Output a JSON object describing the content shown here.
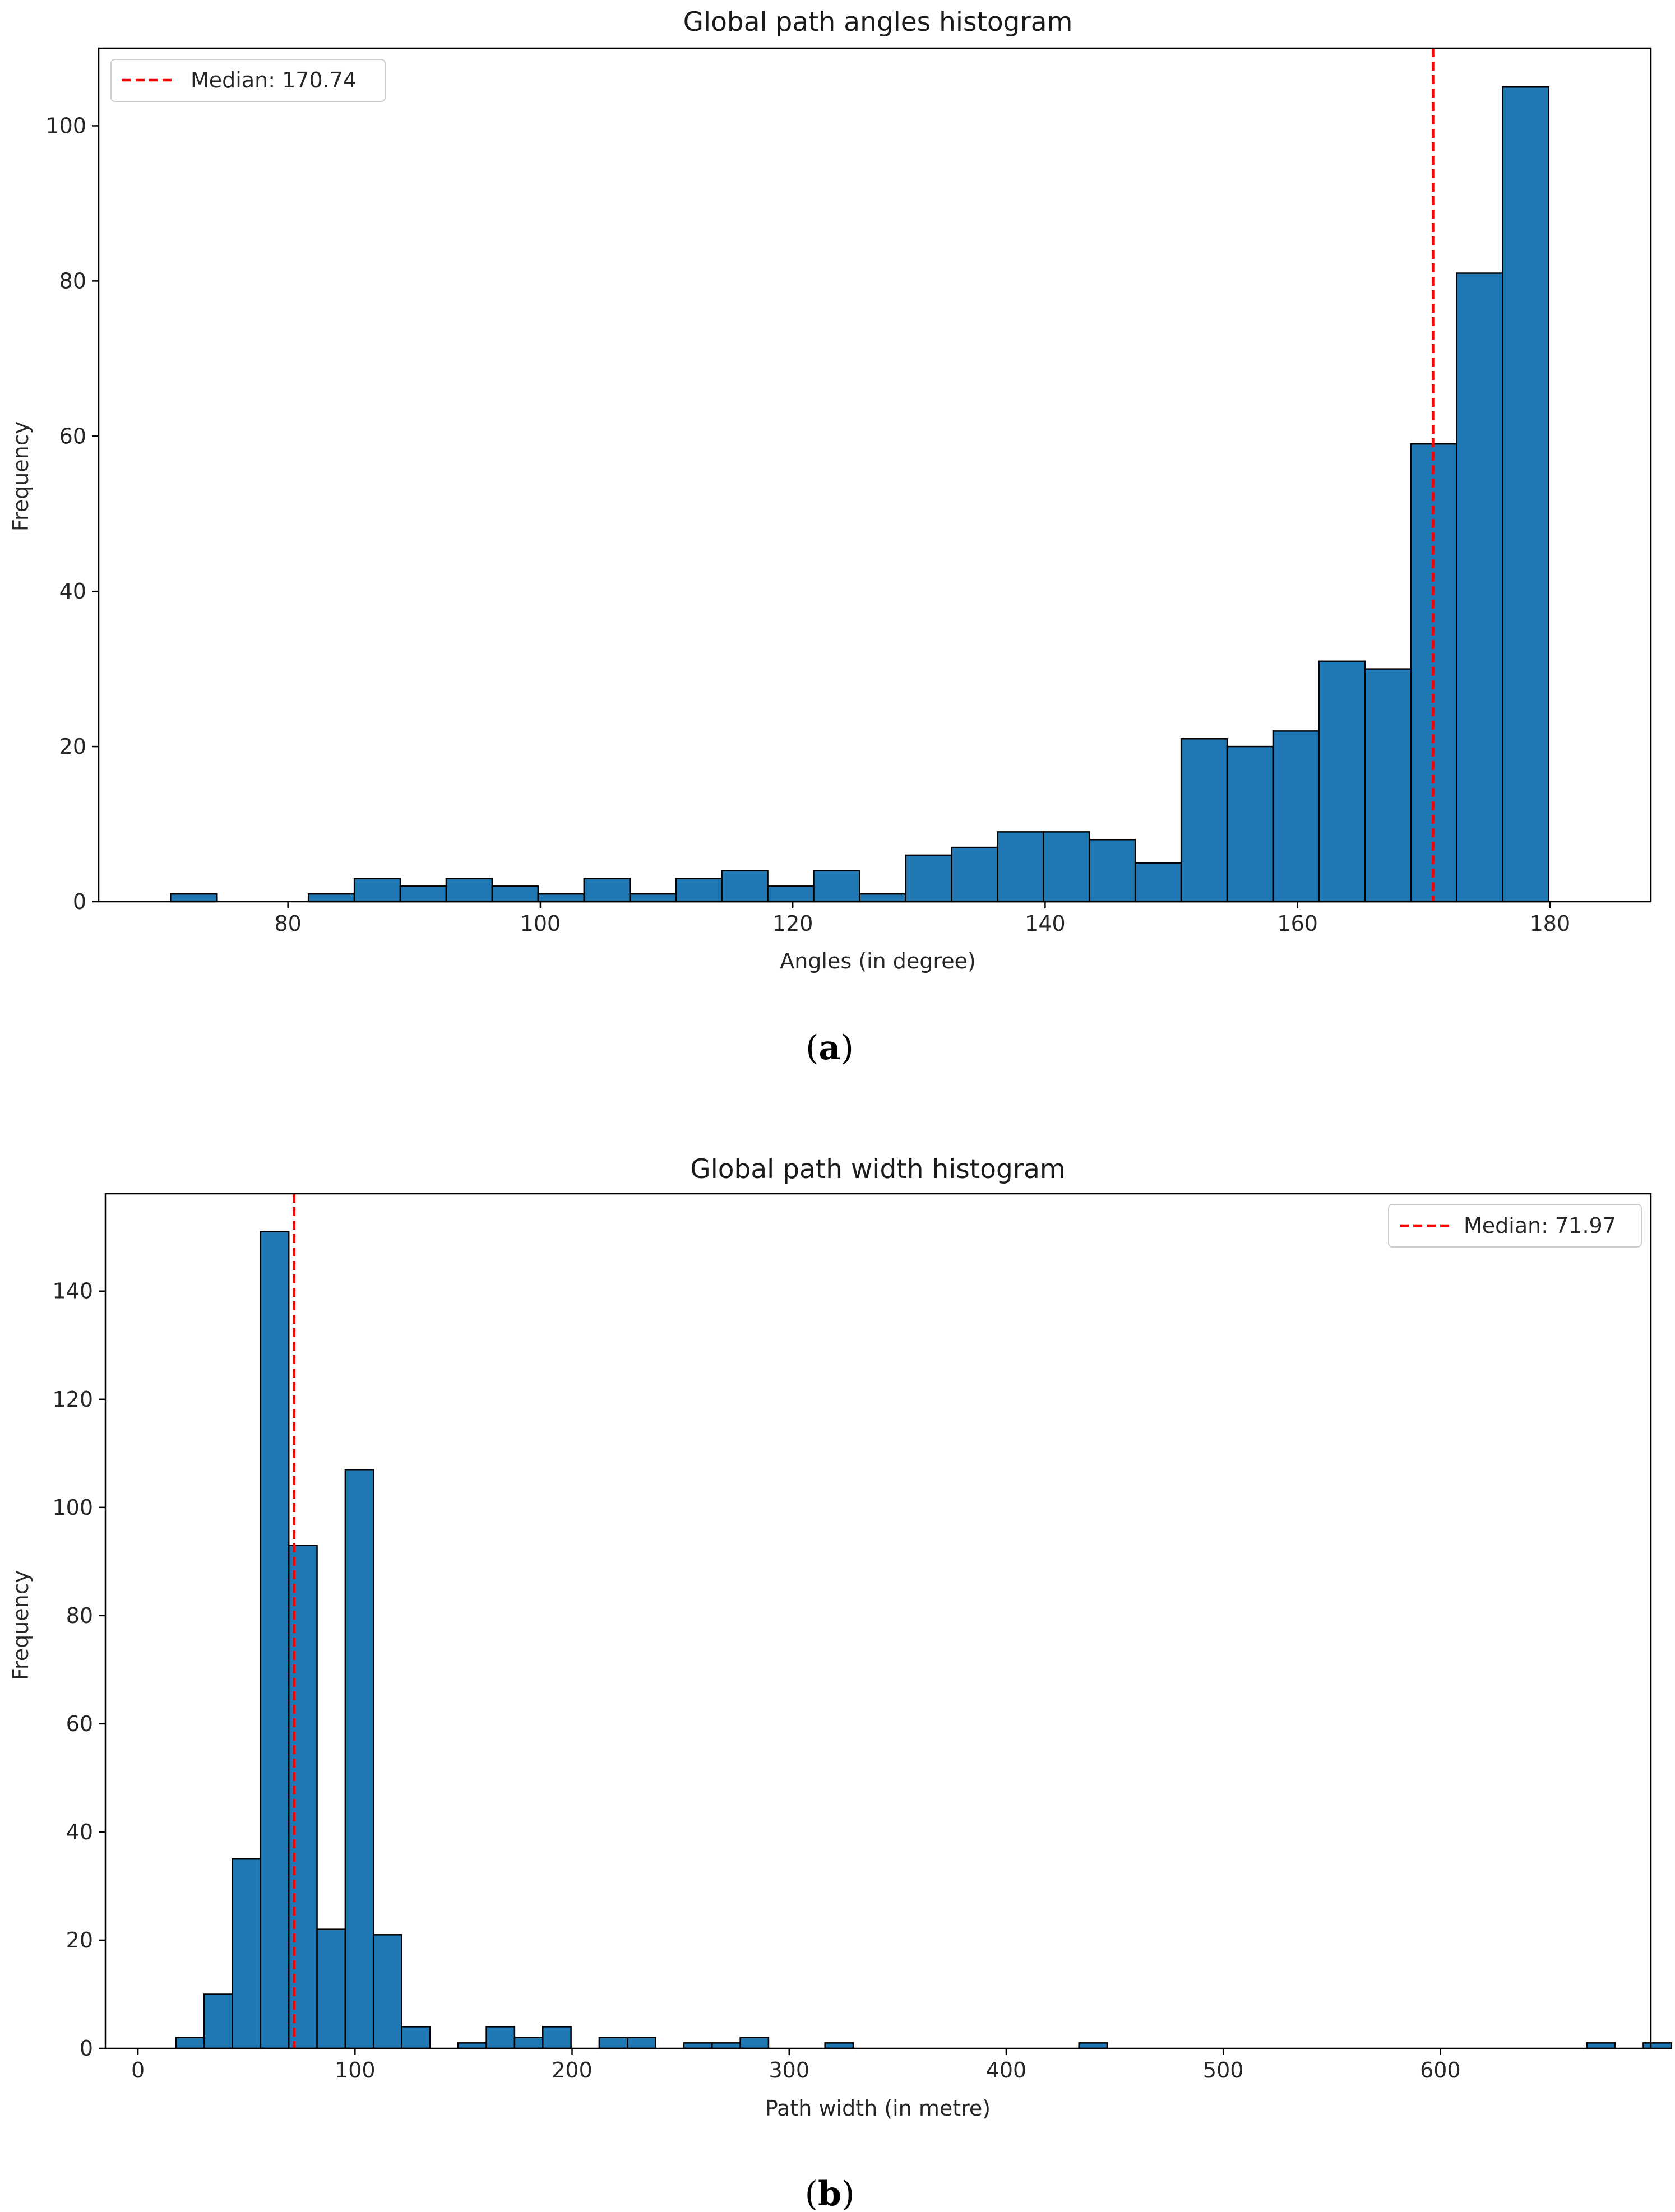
{
  "chart_data": [
    {
      "type": "bar",
      "title": "Global path angles histogram",
      "xlabel": "Angles (in degree)",
      "ylabel": "Frequency",
      "xlim": [
        65,
        188
      ],
      "ylim": [
        0,
        110
      ],
      "xticks": [
        80,
        100,
        120,
        140,
        160,
        180
      ],
      "xtick_labels": [
        "80",
        "100",
        "120",
        "140",
        "160",
        "180"
      ],
      "yticks": [
        0,
        20,
        40,
        60,
        80,
        100
      ],
      "ytick_labels": [
        "0",
        "20",
        "40",
        "60",
        "80",
        "100"
      ],
      "bin_start": 70.7,
      "bin_width": 3.64,
      "values": [
        1,
        0,
        0,
        1,
        3,
        2,
        3,
        2,
        1,
        3,
        1,
        3,
        4,
        2,
        4,
        1,
        6,
        7,
        9,
        9,
        8,
        5,
        21,
        20,
        22,
        31,
        30,
        59,
        81,
        105
      ],
      "median": 170.74,
      "legend": {
        "label": "Median: 170.74",
        "position": "upper-left"
      },
      "bar_color": "#1f77b4",
      "median_color": "#ff0000",
      "caption": "a"
    },
    {
      "type": "bar",
      "title": "Global path width histogram",
      "xlabel": "Path width (in metre)",
      "ylabel": "Frequency",
      "xlim": [
        -15,
        697
      ],
      "ylim": [
        0,
        158
      ],
      "xticks": [
        0,
        100,
        200,
        300,
        400,
        500,
        600
      ],
      "xtick_labels": [
        "0",
        "100",
        "200",
        "300",
        "400",
        "500",
        "600"
      ],
      "yticks": [
        0,
        20,
        40,
        60,
        80,
        100,
        120,
        140
      ],
      "ytick_labels": [
        "0",
        "20",
        "40",
        "60",
        "80",
        "100",
        "120",
        "140"
      ],
      "bin_start": 17.5,
      "bin_width": 13,
      "values": [
        2,
        10,
        35,
        151,
        93,
        22,
        107,
        21,
        4,
        0,
        1,
        4,
        2,
        4,
        0,
        2,
        2,
        0,
        1,
        1,
        2,
        0,
        0,
        1,
        0,
        0,
        0,
        0,
        0,
        0,
        0,
        0,
        1,
        0,
        0,
        0,
        0,
        0,
        0,
        0,
        0,
        0,
        0,
        0,
        0,
        0,
        0,
        0,
        0,
        0,
        1,
        0,
        1
      ],
      "median": 71.97,
      "legend": {
        "label": "Median: 71.97",
        "position": "upper-right"
      },
      "bar_color": "#1f77b4",
      "median_color": "#ff0000",
      "caption": "b"
    }
  ]
}
